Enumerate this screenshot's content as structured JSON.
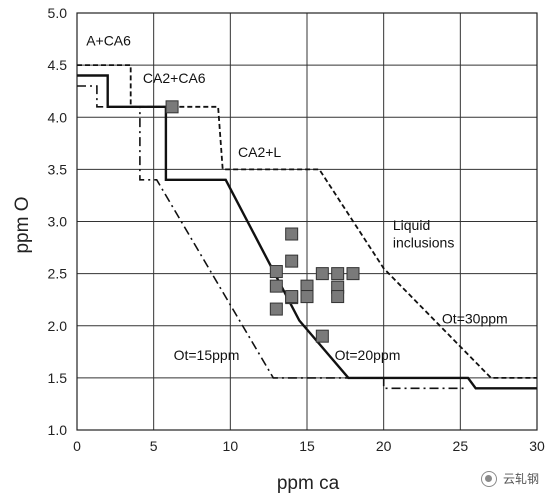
{
  "chart_data": {
    "type": "line",
    "xlabel": "ppm ca",
    "ylabel": "ppm O",
    "xlim": [
      0,
      30
    ],
    "ylim": [
      1.0,
      5.0
    ],
    "x_ticks": [
      "0",
      "5",
      "10",
      "15",
      "20",
      "25",
      "30"
    ],
    "y_ticks": [
      "1.0",
      "1.5",
      "2.0",
      "2.5",
      "3.0",
      "3.5",
      "4.0",
      "4.5",
      "5.0"
    ],
    "grid": true,
    "legend": "none",
    "series": [
      {
        "name": "Ot=30ppm",
        "style": "dashed",
        "x": [
          0,
          3.5,
          3.5,
          9.2,
          9.5,
          15.8,
          20,
          27,
          30
        ],
        "y": [
          4.5,
          4.5,
          4.1,
          4.1,
          3.5,
          3.5,
          2.55,
          1.5,
          1.5
        ]
      },
      {
        "name": "Ot=20ppm",
        "style": "solid",
        "x": [
          0,
          2,
          2,
          5.8,
          5.8,
          9.7,
          14.5,
          17.7,
          25.5,
          26,
          30
        ],
        "y": [
          4.4,
          4.4,
          4.1,
          4.1,
          3.4,
          3.4,
          2.05,
          1.5,
          1.5,
          1.4,
          1.4
        ]
      },
      {
        "name": "Ot=15ppm",
        "style": "dashdot",
        "x": [
          0,
          1.3,
          1.3,
          4.1,
          4.1,
          5.2,
          12.8,
          15.5,
          20,
          20,
          25,
          25.3
        ],
        "y": [
          4.3,
          4.3,
          4.1,
          4.1,
          3.4,
          3.4,
          1.5,
          1.5,
          1.5,
          1.4,
          1.4,
          1.4
        ]
      }
    ],
    "points": {
      "marker": "square",
      "color": "#7a7a7a",
      "x": [
        6.2,
        14,
        13,
        14,
        13,
        14,
        16,
        15,
        17,
        18,
        15,
        17,
        15,
        17,
        14,
        13,
        16
      ],
      "y": [
        4.1,
        2.88,
        2.52,
        2.62,
        2.38,
        2.27,
        2.5,
        2.38,
        2.5,
        2.5,
        2.28,
        2.37,
        2.28,
        2.28,
        2.28,
        2.16,
        1.9
      ]
    },
    "annotations": [
      {
        "text": "A+CA6",
        "x": 0.6,
        "y": 4.69
      },
      {
        "text": "CA2+CA6",
        "x": 4.3,
        "y": 4.33
      },
      {
        "text": "CA2+L",
        "x": 10.5,
        "y": 3.62
      },
      {
        "text": "Liquid",
        "x": 20.6,
        "y": 2.92
      },
      {
        "text": "inclusions",
        "x": 20.6,
        "y": 2.75
      },
      {
        "text": "Ot=30ppm",
        "x": 23.8,
        "y": 2.02
      },
      {
        "text": "Ot=20ppm",
        "x": 16.8,
        "y": 1.67
      },
      {
        "text": "Ot=15ppm",
        "x": 6.3,
        "y": 1.67
      }
    ],
    "colors": {
      "axis": "#222222",
      "grid": "#333333",
      "line": "#111111",
      "marker": "#7a7a7a"
    }
  },
  "watermark": {
    "text": "云轧钢"
  }
}
